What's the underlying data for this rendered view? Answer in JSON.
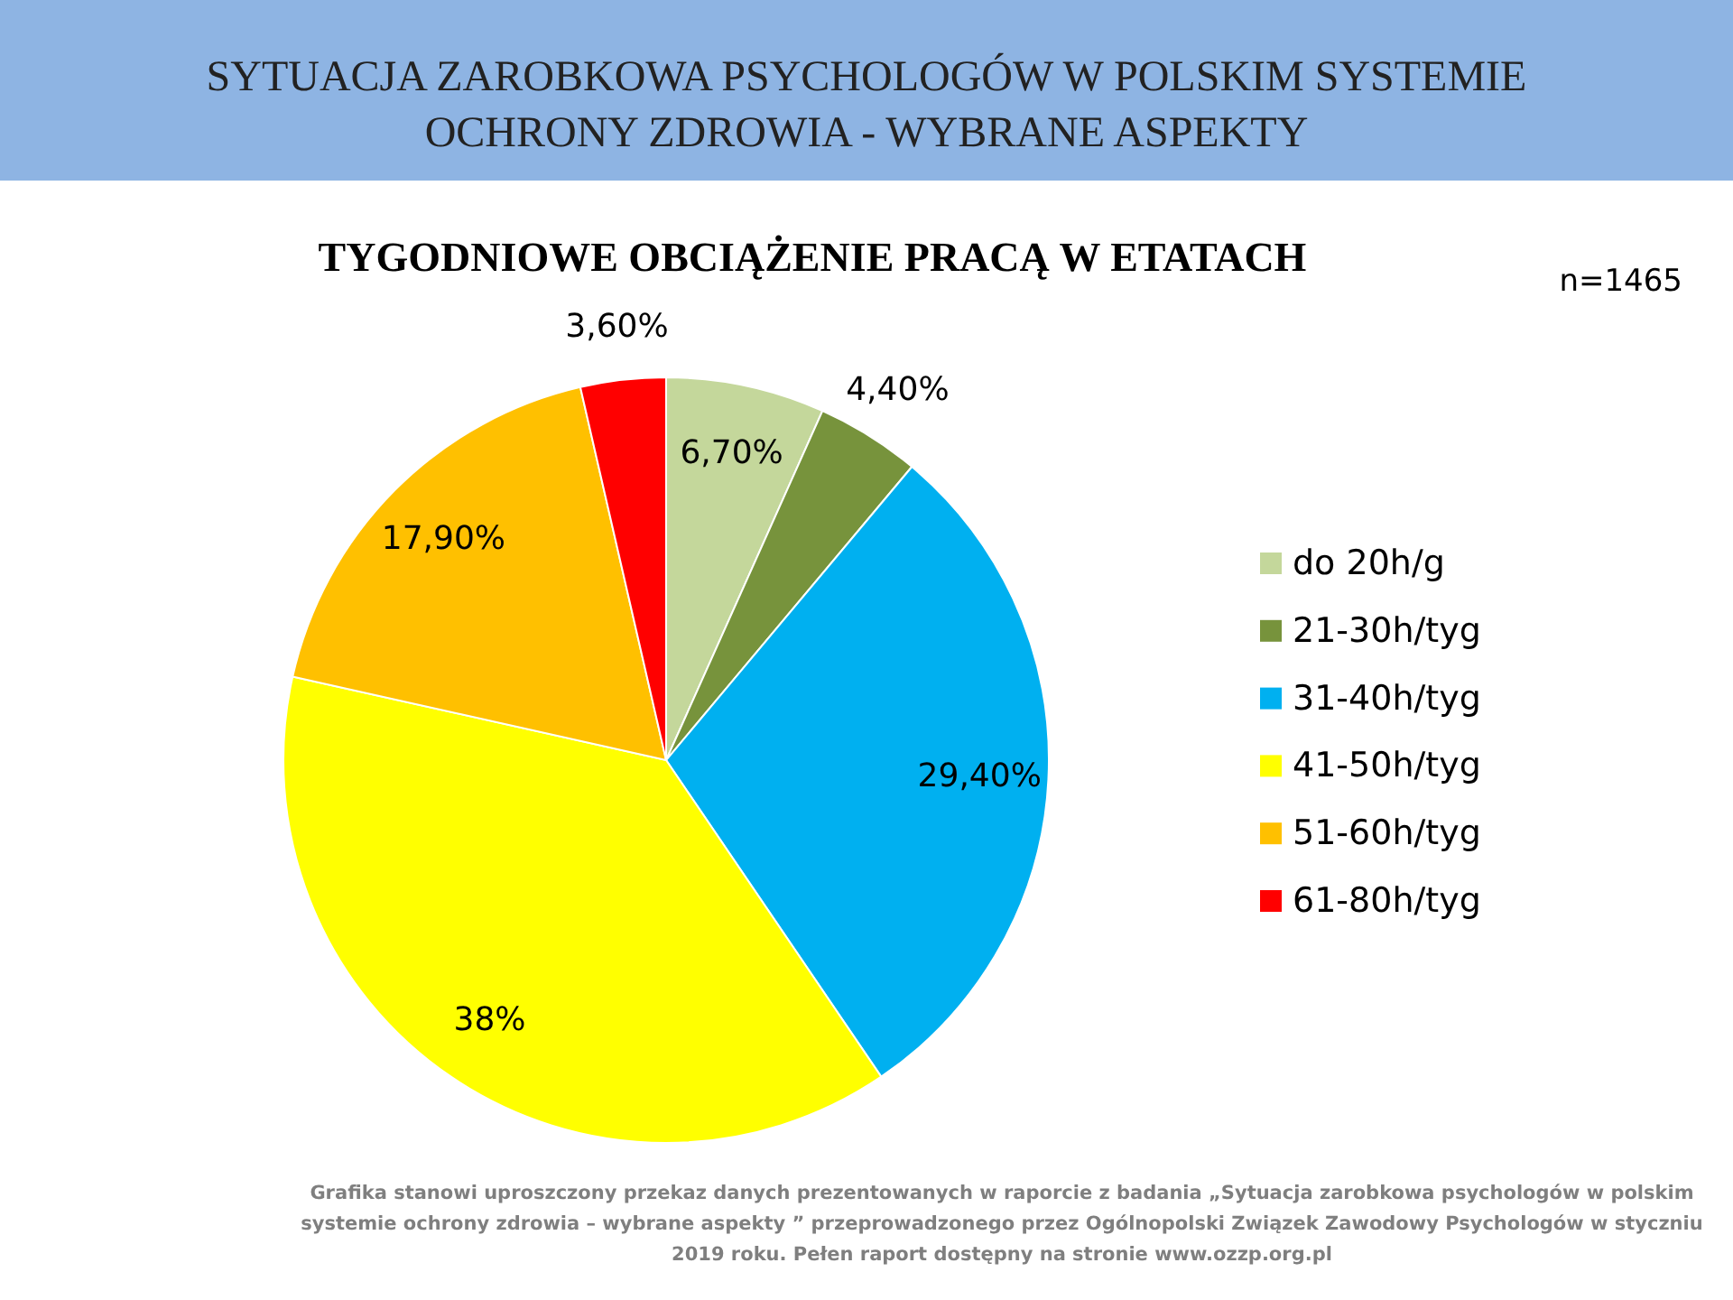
{
  "chart_data": {
    "type": "pie",
    "title": "SYTUACJA ZAROBKOWA PSYCHOLOGÓW W POLSKIM SYSTEMIE\nOCHRONY ZDROWIA - WYBRANE ASPEKTY",
    "subtitle": "TYGODNIOWE OBCIĄŻENIE PRACĄ W ETATACH",
    "categories": [
      "do 20h/g",
      "21-30h/tyg",
      "31-40h/tyg",
      "41-50h/tyg",
      "51-60h/tyg",
      "61-80h/tyg"
    ],
    "values": [
      6.7,
      4.4,
      29.4,
      38,
      17.9,
      3.6
    ],
    "value_labels": [
      "6,70%",
      "4,40%",
      "29,40%",
      "38%",
      "17,90%",
      "3,60%"
    ],
    "colors": [
      "#c4d79b",
      "#77933c",
      "#00b0f0",
      "#ffff00",
      "#ffc000",
      "#ff0000"
    ],
    "legend": "right",
    "annotations": [
      "n=1465",
      "Grafika stanowi uproszczony przekaz danych prezentowanych w raporcie z badania „Sytuacja zarobkowa psychologów w polskim\nsystemie ochrony zdrowia – wybrane aspekty ” przeprowadzonego przez Ogólnopolski Związek Zawodowy Psychologów w styczniu\n2019 roku. Pełen raport dostępny na stronie www.ozzp.org.pl"
    ]
  }
}
